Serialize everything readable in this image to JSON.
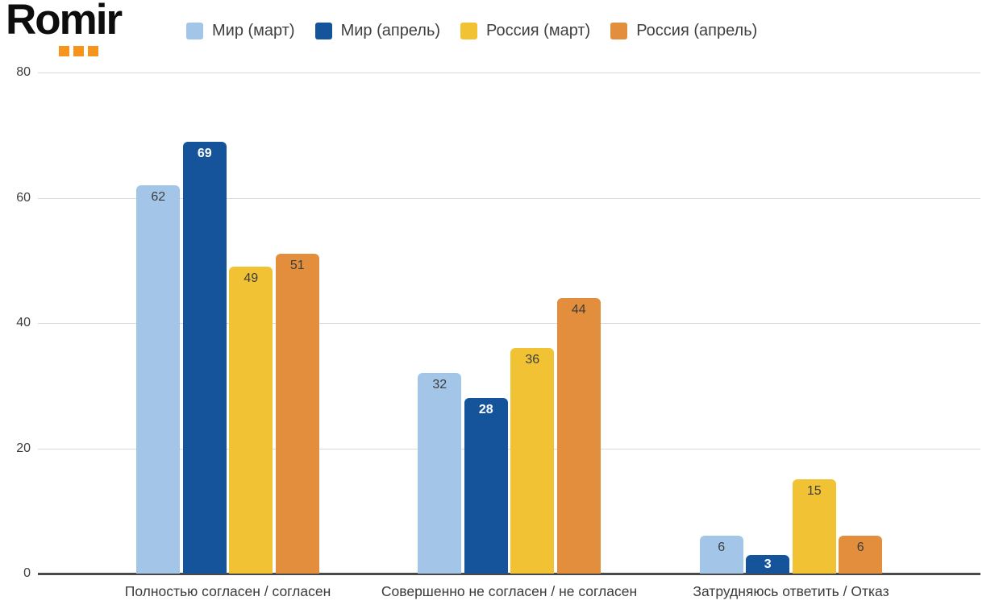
{
  "logo": {
    "text": "Romir",
    "dot_color": "#F7941E",
    "dot_count": 3
  },
  "legend": [
    {
      "label": "Мир (март)",
      "color": "#A3C6E8"
    },
    {
      "label": "Мир (апрель)",
      "color": "#15549B"
    },
    {
      "label": "Россия (март)",
      "color": "#F0C234"
    },
    {
      "label": "Россия (апрель)",
      "color": "#E28E3C"
    }
  ],
  "chart_data": {
    "type": "bar",
    "title": "",
    "categories": [
      "Полностью согласен / согласен",
      "Совершенно не согласен / не согласен",
      "Затрудняюсь ответить / Отказ"
    ],
    "series": [
      {
        "name": "Мир (март)",
        "color": "#A3C6E8",
        "label_color": "#3d3d3d",
        "values": [
          62,
          32,
          6
        ]
      },
      {
        "name": "Мир (апрель)",
        "color": "#15549B",
        "label_color": "#ffffff",
        "values": [
          69,
          28,
          3
        ]
      },
      {
        "name": "Россия (март)",
        "color": "#F0C234",
        "label_color": "#3d3d3d",
        "values": [
          49,
          36,
          15
        ]
      },
      {
        "name": "Россия (апрель)",
        "color": "#E28E3C",
        "label_color": "#3d3d3d",
        "values": [
          51,
          44,
          6
        ]
      }
    ],
    "xlabel": "",
    "ylabel": "",
    "ylim": [
      0,
      80
    ],
    "yticks": [
      0,
      20,
      40,
      60,
      80
    ],
    "grid": true,
    "legend_position": "top",
    "colors": {
      "gridline": "#d9d9d9",
      "axis_line": "#4a4a4a",
      "tick_text": "#3d3d3d"
    }
  }
}
